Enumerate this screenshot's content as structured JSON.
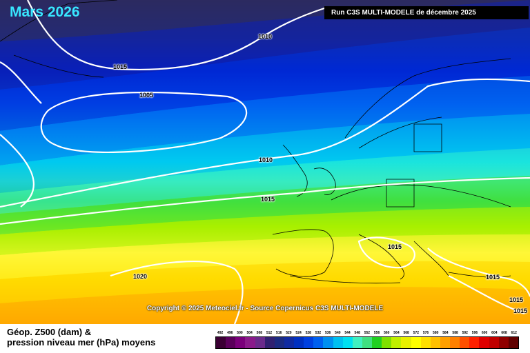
{
  "header": {
    "title": "Mars 2026",
    "run_info": "Run C3S MULTI-MODELE de décembre 2025"
  },
  "map": {
    "copyright": "Copyright © 2025 Meteociel.fr - Source Copernicus C3S MULTI-MODELE",
    "isobar_labels": [
      "1010",
      "1015",
      "1005",
      "1010",
      "1015",
      "1015",
      "1020",
      "1015",
      "1015",
      "1015"
    ]
  },
  "legend": {
    "title_line1": "Géop. Z500 (dam) &",
    "title_line2": "pression niveau mer (hPa) moyens",
    "scale_values": [
      "492",
      "496",
      "500",
      "504",
      "508",
      "512",
      "516",
      "520",
      "524",
      "528",
      "532",
      "536",
      "540",
      "544",
      "548",
      "552",
      "556",
      "560",
      "564",
      "568",
      "572",
      "576",
      "580",
      "584",
      "588",
      "592",
      "596",
      "600",
      "604",
      "608",
      "612"
    ],
    "scale_colors": [
      "#3a0033",
      "#5a005a",
      "#7a007a",
      "#8a1a8a",
      "#6a2a8a",
      "#302070",
      "#1a2a80",
      "#102aa0",
      "#0030c0",
      "#0040e0",
      "#0060f0",
      "#0090f0",
      "#00c0f0",
      "#00e0f0",
      "#40f0c0",
      "#40e080",
      "#20d020",
      "#80e000",
      "#c0f000",
      "#e8f000",
      "#ffff00",
      "#ffe000",
      "#ffc000",
      "#ffa000",
      "#ff8000",
      "#ff5000",
      "#ff2000",
      "#e00000",
      "#c00000",
      "#900000",
      "#600000"
    ]
  }
}
